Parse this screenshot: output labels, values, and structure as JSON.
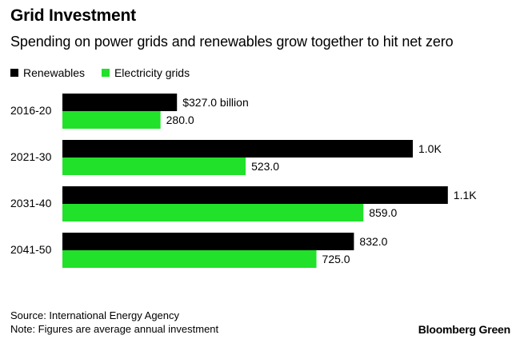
{
  "title": "Grid Investment",
  "subtitle": "Spending on power grids and renewables grow together to hit net zero",
  "colors": {
    "renewables": "#000000",
    "electricity_grids": "#21e12a"
  },
  "chart_data": {
    "type": "bar",
    "orientation": "horizontal",
    "categories": [
      "2016-20",
      "2021-30",
      "2031-40",
      "2041-50"
    ],
    "series": [
      {
        "name": "Renewables",
        "values": [
          327.0,
          1000,
          1100,
          832.0
        ],
        "labels": [
          "$327.0 billion",
          "1.0K",
          "1.1K",
          "832.0"
        ]
      },
      {
        "name": "Electricity grids",
        "values": [
          280.0,
          523.0,
          859.0,
          725.0
        ],
        "labels": [
          "280.0",
          "523.0",
          "859.0",
          "725.0"
        ]
      }
    ],
    "legend_position": "top-left",
    "grid": false
  },
  "footer": {
    "source": "Source: International Energy Agency",
    "note": "Note: Figures are average annual investment",
    "brand": "Bloomberg Green"
  }
}
